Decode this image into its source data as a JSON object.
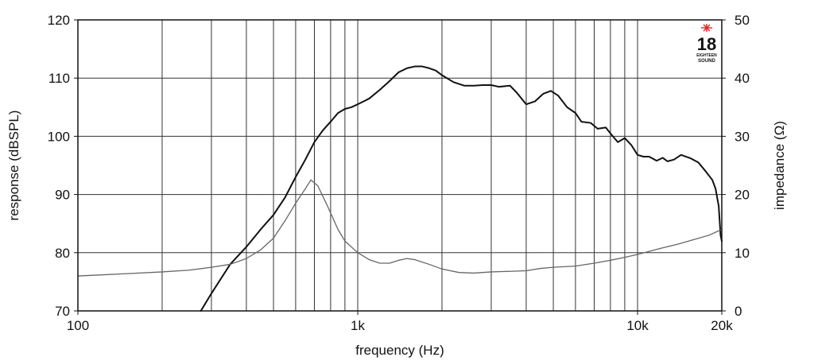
{
  "chart_data": {
    "type": "line",
    "xlabel": "frequency (Hz)",
    "ylabel": "response (dBSPL)",
    "y2label": "impedance (Ω)",
    "x_scale": "log",
    "xlim": [
      100,
      20000
    ],
    "ylim": [
      70,
      120
    ],
    "y2lim": [
      0,
      50
    ],
    "grid": true,
    "x_ticks": [
      {
        "value": 100,
        "label": "100"
      },
      {
        "value": 1000,
        "label": "1k"
      },
      {
        "value": 10000,
        "label": "10k"
      },
      {
        "value": 20000,
        "label": "20k"
      }
    ],
    "x_minor_gridlines": [
      200,
      300,
      400,
      500,
      600,
      700,
      800,
      900,
      2000,
      3000,
      4000,
      5000,
      6000,
      7000,
      8000,
      9000
    ],
    "y_ticks": [
      {
        "value": 70,
        "label": "70"
      },
      {
        "value": 80,
        "label": "80"
      },
      {
        "value": 90,
        "label": "90"
      },
      {
        "value": 100,
        "label": "100"
      },
      {
        "value": 110,
        "label": "110"
      },
      {
        "value": 120,
        "label": "120"
      }
    ],
    "y2_ticks": [
      {
        "value": 0,
        "label": "0"
      },
      {
        "value": 10,
        "label": "10"
      },
      {
        "value": 20,
        "label": "20"
      },
      {
        "value": 30,
        "label": "30"
      },
      {
        "value": 40,
        "label": "40"
      },
      {
        "value": 50,
        "label": "50"
      }
    ],
    "series": [
      {
        "axis": "left",
        "color": "#111111",
        "points": [
          [
            275,
            70
          ],
          [
            300,
            73
          ],
          [
            350,
            78
          ],
          [
            400,
            81
          ],
          [
            450,
            84
          ],
          [
            500,
            86.5
          ],
          [
            550,
            89.5
          ],
          [
            600,
            93
          ],
          [
            650,
            96
          ],
          [
            700,
            99
          ],
          [
            750,
            101
          ],
          [
            800,
            102.5
          ],
          [
            850,
            104
          ],
          [
            900,
            104.7
          ],
          [
            950,
            105
          ],
          [
            1000,
            105.5
          ],
          [
            1050,
            106
          ],
          [
            1100,
            106.5
          ],
          [
            1200,
            108
          ],
          [
            1300,
            109.5
          ],
          [
            1400,
            111
          ],
          [
            1500,
            111.7
          ],
          [
            1600,
            112
          ],
          [
            1700,
            112
          ],
          [
            1800,
            111.7
          ],
          [
            1900,
            111.3
          ],
          [
            2000,
            110.5
          ],
          [
            2200,
            109.3
          ],
          [
            2400,
            108.7
          ],
          [
            2600,
            108.7
          ],
          [
            2800,
            108.8
          ],
          [
            3000,
            108.8
          ],
          [
            3200,
            108.5
          ],
          [
            3500,
            108.7
          ],
          [
            3700,
            107.5
          ],
          [
            4000,
            105.5
          ],
          [
            4300,
            106
          ],
          [
            4600,
            107.3
          ],
          [
            4900,
            107.8
          ],
          [
            5200,
            107
          ],
          [
            5600,
            105
          ],
          [
            6000,
            104
          ],
          [
            6300,
            102.5
          ],
          [
            6800,
            102.3
          ],
          [
            7200,
            101.3
          ],
          [
            7700,
            101.5
          ],
          [
            8000,
            100.5
          ],
          [
            8500,
            99
          ],
          [
            9000,
            99.7
          ],
          [
            9500,
            98.5
          ],
          [
            10000,
            96.8
          ],
          [
            10500,
            96.5
          ],
          [
            11000,
            96.5
          ],
          [
            11700,
            95.8
          ],
          [
            12300,
            96.3
          ],
          [
            12800,
            95.7
          ],
          [
            13500,
            96
          ],
          [
            14300,
            96.8
          ],
          [
            15500,
            96.2
          ],
          [
            16500,
            95.5
          ],
          [
            17500,
            94
          ],
          [
            18500,
            92.5
          ],
          [
            19000,
            91
          ],
          [
            19500,
            88
          ],
          [
            19800,
            83
          ],
          [
            20000,
            82
          ]
        ]
      },
      {
        "axis": "right",
        "color": "#666666",
        "points": [
          [
            100,
            6
          ],
          [
            150,
            6.4
          ],
          [
            200,
            6.7
          ],
          [
            250,
            7
          ],
          [
            300,
            7.5
          ],
          [
            350,
            8
          ],
          [
            400,
            9
          ],
          [
            450,
            10.5
          ],
          [
            500,
            12.5
          ],
          [
            550,
            15.5
          ],
          [
            600,
            18.5
          ],
          [
            650,
            21
          ],
          [
            680,
            22.5
          ],
          [
            720,
            21.5
          ],
          [
            780,
            18
          ],
          [
            850,
            14
          ],
          [
            900,
            12
          ],
          [
            1000,
            10
          ],
          [
            1100,
            8.8
          ],
          [
            1200,
            8.2
          ],
          [
            1300,
            8.2
          ],
          [
            1400,
            8.7
          ],
          [
            1500,
            9
          ],
          [
            1600,
            8.8
          ],
          [
            1800,
            8
          ],
          [
            2000,
            7.2
          ],
          [
            2300,
            6.6
          ],
          [
            2600,
            6.5
          ],
          [
            3000,
            6.7
          ],
          [
            3500,
            6.8
          ],
          [
            4000,
            6.9
          ],
          [
            4500,
            7.3
          ],
          [
            5000,
            7.5
          ],
          [
            6000,
            7.7
          ],
          [
            7000,
            8.2
          ],
          [
            8000,
            8.7
          ],
          [
            9000,
            9.2
          ],
          [
            10000,
            9.7
          ],
          [
            12000,
            10.7
          ],
          [
            14000,
            11.5
          ],
          [
            16000,
            12.3
          ],
          [
            18000,
            13
          ],
          [
            20000,
            14
          ]
        ]
      }
    ]
  },
  "logo": {
    "number": "18",
    "line1": "EIGHTEEN",
    "line2": "SOUND",
    "star_color": "#e0262a"
  }
}
